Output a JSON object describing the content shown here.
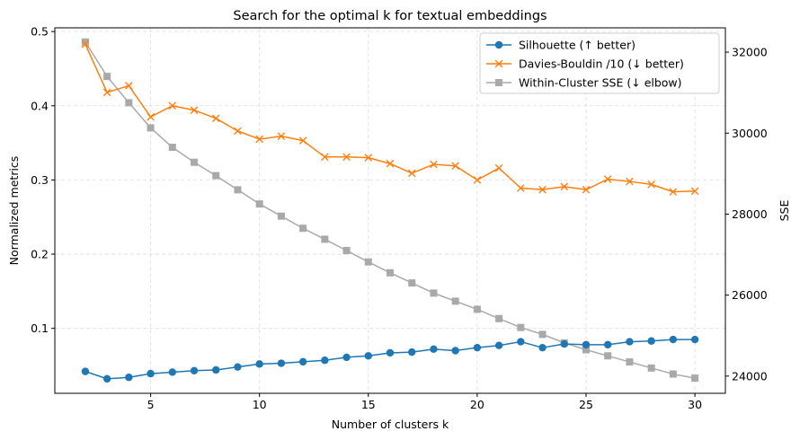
{
  "chart_data": {
    "type": "line",
    "title": "Search for the optimal k for textual embeddings",
    "xlabel": "Number of clusters k",
    "ylabel": "Normalized metrics",
    "y2label": "SSE",
    "xlim": [
      0.6,
      31.4
    ],
    "ylim": [
      0.0125,
      0.505
    ],
    "y2lim": [
      23575,
      32600
    ],
    "x_ticks": [
      5,
      10,
      15,
      20,
      25,
      30
    ],
    "y_ticks": [
      0.1,
      0.2,
      0.3,
      0.4,
      0.5
    ],
    "y2_ticks": [
      24000,
      26000,
      28000,
      30000,
      32000
    ],
    "grid": true,
    "legend_position": "top-right",
    "x": [
      2,
      3,
      4,
      5,
      6,
      7,
      8,
      9,
      10,
      11,
      12,
      13,
      14,
      15,
      16,
      17,
      18,
      19,
      20,
      21,
      22,
      23,
      24,
      25,
      26,
      27,
      28,
      29,
      30
    ],
    "series": [
      {
        "name": "Silhouette (↑ better)",
        "axis": "left",
        "color": "#1f77b4",
        "marker": "circle",
        "values": [
          0.042,
          0.032,
          0.034,
          0.039,
          0.041,
          0.043,
          0.044,
          0.048,
          0.052,
          0.053,
          0.055,
          0.057,
          0.061,
          0.063,
          0.067,
          0.068,
          0.072,
          0.07,
          0.074,
          0.077,
          0.082,
          0.074,
          0.079,
          0.078,
          0.078,
          0.082,
          0.083,
          0.085,
          0.085
        ]
      },
      {
        "name": "Davies-Bouldin /10 (↓ better)",
        "axis": "left",
        "color": "#ff7f0e",
        "marker": "x",
        "values": [
          0.483,
          0.418,
          0.427,
          0.385,
          0.4,
          0.394,
          0.383,
          0.366,
          0.355,
          0.359,
          0.353,
          0.331,
          0.331,
          0.33,
          0.322,
          0.309,
          0.321,
          0.319,
          0.3,
          0.316,
          0.289,
          0.287,
          0.291,
          0.287,
          0.301,
          0.298,
          0.294,
          0.284,
          0.285
        ]
      },
      {
        "name": "Within-Cluster SSE (↓ elbow)",
        "axis": "right",
        "color": "#a9a9a9",
        "marker": "square",
        "values": [
          32250,
          31400,
          30750,
          30130,
          29650,
          29280,
          28950,
          28600,
          28250,
          27950,
          27650,
          27380,
          27100,
          26820,
          26550,
          26300,
          26050,
          25850,
          25650,
          25420,
          25200,
          25030,
          24820,
          24650,
          24500,
          24350,
          24200,
          24050,
          23950
        ]
      }
    ]
  }
}
